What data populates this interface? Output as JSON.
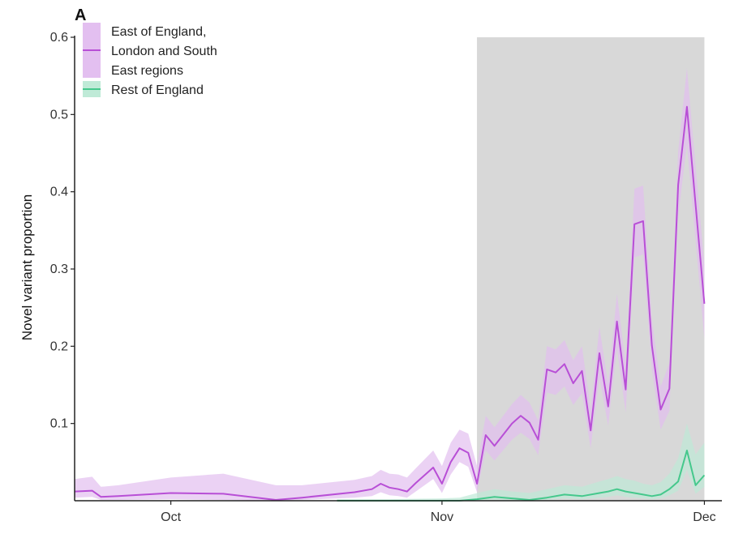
{
  "panel_label": "A",
  "colors": {
    "series_1": "#b84fd6",
    "series_1_band": "#e3bff0",
    "series_2": "#45c88c",
    "series_2_band": "#bfead7",
    "shade": "#d8d8d8",
    "axis": "#222222"
  },
  "chart_data": {
    "type": "line",
    "title": "",
    "xlabel": "",
    "ylabel": "Novel variant proportion",
    "x_ticks": [
      {
        "label": "Oct",
        "date": "2020-10-01"
      },
      {
        "label": "Nov",
        "date": "2020-11-01"
      },
      {
        "label": "Dec",
        "date": "2020-12-01"
      }
    ],
    "y_ticks": [
      "0.1",
      "0.2",
      "0.3",
      "0.4",
      "0.5",
      "0.6"
    ],
    "xlim": [
      "2020-09-20",
      "2020-12-03"
    ],
    "ylim": [
      0,
      0.6
    ],
    "shaded_region": {
      "start": "2020-11-05",
      "end": "2020-12-01",
      "ymax": 0.6
    },
    "grid": false,
    "legend_position": "top-left",
    "legend": [
      {
        "lines": [
          "East of England,",
          "London and South",
          "East regions"
        ],
        "series": 0
      },
      {
        "lines": [
          "Rest of England"
        ],
        "series": 1
      }
    ],
    "series": [
      {
        "name": "East of England, London and South East regions",
        "color": "#b84fd6",
        "x": [
          "2020-09-20",
          "2020-09-22",
          "2020-09-23",
          "2020-09-25",
          "2020-10-01",
          "2020-10-07",
          "2020-10-13",
          "2020-10-16",
          "2020-10-22",
          "2020-10-24",
          "2020-10-25",
          "2020-10-26",
          "2020-10-27",
          "2020-10-28",
          "2020-10-29",
          "2020-10-31",
          "2020-11-01",
          "2020-11-02",
          "2020-11-03",
          "2020-11-04",
          "2020-11-05",
          "2020-11-06",
          "2020-11-07",
          "2020-11-09",
          "2020-11-10",
          "2020-11-11",
          "2020-11-12",
          "2020-11-13",
          "2020-11-14",
          "2020-11-15",
          "2020-11-16",
          "2020-11-17",
          "2020-11-18",
          "2020-11-19",
          "2020-11-20",
          "2020-11-21",
          "2020-11-22",
          "2020-11-23",
          "2020-11-24",
          "2020-11-25",
          "2020-11-26",
          "2020-11-27",
          "2020-11-28",
          "2020-11-29",
          "2020-12-01"
        ],
        "y": [
          0.012,
          0.013,
          0.005,
          0.006,
          0.01,
          0.009,
          0.001,
          0.004,
          0.011,
          0.015,
          0.022,
          0.017,
          0.015,
          0.012,
          0.023,
          0.043,
          0.022,
          0.05,
          0.068,
          0.062,
          0.022,
          0.085,
          0.071,
          0.1,
          0.11,
          0.101,
          0.079,
          0.17,
          0.166,
          0.177,
          0.152,
          0.168,
          0.091,
          0.191,
          0.122,
          0.232,
          0.144,
          0.358,
          0.362,
          0.201,
          0.118,
          0.145,
          0.409,
          0.51,
          0.255
        ],
        "lower": [
          0.004,
          0.005,
          0.001,
          0.001,
          0.002,
          0.001,
          0.0,
          0.001,
          0.004,
          0.006,
          0.011,
          0.007,
          0.006,
          0.004,
          0.012,
          0.028,
          0.01,
          0.034,
          0.05,
          0.044,
          0.011,
          0.065,
          0.052,
          0.079,
          0.088,
          0.08,
          0.059,
          0.14,
          0.137,
          0.148,
          0.124,
          0.139,
          0.068,
          0.16,
          0.097,
          0.198,
          0.114,
          0.315,
          0.319,
          0.17,
          0.092,
          0.116,
          0.368,
          0.462,
          0.21
        ],
        "upper": [
          0.028,
          0.031,
          0.018,
          0.02,
          0.03,
          0.035,
          0.02,
          0.02,
          0.027,
          0.032,
          0.04,
          0.035,
          0.034,
          0.03,
          0.042,
          0.065,
          0.045,
          0.075,
          0.092,
          0.087,
          0.045,
          0.11,
          0.095,
          0.125,
          0.137,
          0.127,
          0.104,
          0.2,
          0.196,
          0.208,
          0.182,
          0.2,
          0.118,
          0.225,
          0.151,
          0.268,
          0.176,
          0.404,
          0.408,
          0.236,
          0.148,
          0.178,
          0.452,
          0.56,
          0.305
        ]
      },
      {
        "name": "Rest of England",
        "color": "#45c88c",
        "x": [
          "2020-10-20",
          "2020-10-26",
          "2020-11-01",
          "2020-11-03",
          "2020-11-05",
          "2020-11-07",
          "2020-11-09",
          "2020-11-11",
          "2020-11-13",
          "2020-11-15",
          "2020-11-17",
          "2020-11-19",
          "2020-11-20",
          "2020-11-21",
          "2020-11-22",
          "2020-11-23",
          "2020-11-24",
          "2020-11-25",
          "2020-11-26",
          "2020-11-27",
          "2020-11-28",
          "2020-11-29",
          "2020-11-30",
          "2020-12-01"
        ],
        "y": [
          0.0,
          0.0,
          0.0,
          0.0,
          0.002,
          0.005,
          0.003,
          0.001,
          0.004,
          0.008,
          0.006,
          0.01,
          0.012,
          0.015,
          0.012,
          0.01,
          0.008,
          0.006,
          0.008,
          0.015,
          0.025,
          0.065,
          0.02,
          0.033
        ],
        "lower": [
          0.0,
          0.0,
          0.0,
          0.0,
          0.0,
          0.001,
          0.0,
          0.0,
          0.001,
          0.003,
          0.002,
          0.004,
          0.005,
          0.007,
          0.005,
          0.004,
          0.003,
          0.002,
          0.003,
          0.007,
          0.013,
          0.04,
          0.009,
          0.018
        ],
        "upper": [
          0.002,
          0.002,
          0.003,
          0.004,
          0.01,
          0.015,
          0.012,
          0.01,
          0.015,
          0.02,
          0.018,
          0.025,
          0.028,
          0.032,
          0.028,
          0.026,
          0.022,
          0.02,
          0.024,
          0.035,
          0.055,
          0.1,
          0.06,
          0.075
        ]
      }
    ]
  }
}
